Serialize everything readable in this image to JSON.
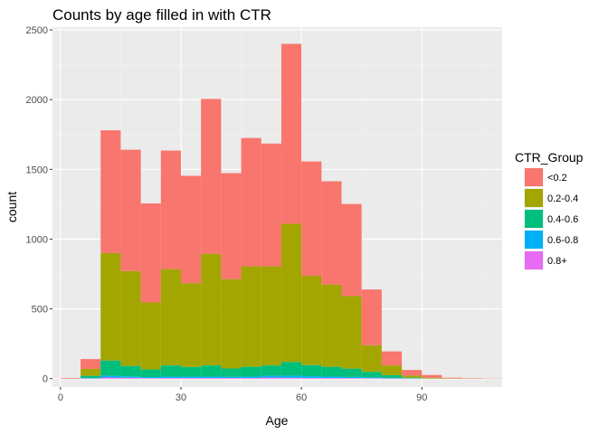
{
  "chart_data": {
    "type": "bar",
    "stacked": true,
    "title": "Counts by age filled in with CTR",
    "xlabel": "Age",
    "ylabel": "count",
    "xlim": [
      -2,
      110
    ],
    "ylim": [
      -60,
      2520
    ],
    "x_ticks": [
      0,
      30,
      60,
      90
    ],
    "y_ticks": [
      0,
      500,
      1000,
      1500,
      2000,
      2500
    ],
    "bin_width": 5,
    "bin_starts": [
      0,
      5,
      10,
      15,
      20,
      25,
      30,
      35,
      40,
      45,
      50,
      55,
      60,
      65,
      70,
      75,
      80,
      85,
      90,
      95,
      100,
      105
    ],
    "grid": true,
    "legend": {
      "title": "CTR_Group",
      "position": "right"
    },
    "series": [
      {
        "name": "<0.2",
        "color": "#F8766D",
        "values": [
          5,
          70,
          880,
          870,
          710,
          850,
          770,
          1110,
          760,
          920,
          880,
          1290,
          820,
          740,
          660,
          400,
          100,
          40,
          20,
          5,
          3,
          2
        ]
      },
      {
        "name": "0.2-0.4",
        "color": "#A3A500",
        "values": [
          0,
          50,
          770,
          680,
          480,
          690,
          600,
          800,
          640,
          720,
          710,
          990,
          640,
          590,
          520,
          190,
          70,
          15,
          5,
          2,
          1,
          0
        ]
      },
      {
        "name": "0.4-0.6",
        "color": "#00BF7D",
        "values": [
          0,
          15,
          110,
          75,
          55,
          80,
          70,
          80,
          60,
          70,
          75,
          100,
          80,
          70,
          60,
          40,
          20,
          5,
          1,
          0,
          0,
          0
        ]
      },
      {
        "name": "0.6-0.8",
        "color": "#00B0F6",
        "values": [
          0,
          3,
          12,
          10,
          7,
          10,
          9,
          10,
          8,
          10,
          12,
          14,
          12,
          10,
          8,
          6,
          3,
          1,
          0,
          0,
          0,
          0
        ]
      },
      {
        "name": "0.8+",
        "color": "#E76BF3",
        "values": [
          0,
          2,
          8,
          6,
          4,
          5,
          5,
          5,
          5,
          5,
          8,
          6,
          5,
          5,
          4,
          3,
          2,
          1,
          0,
          0,
          0,
          0
        ]
      }
    ]
  },
  "colors": {
    "panel_background": "#EBEBEB",
    "grid_major": "#FFFFFF",
    "grid_minor": "#F2F2F2"
  }
}
